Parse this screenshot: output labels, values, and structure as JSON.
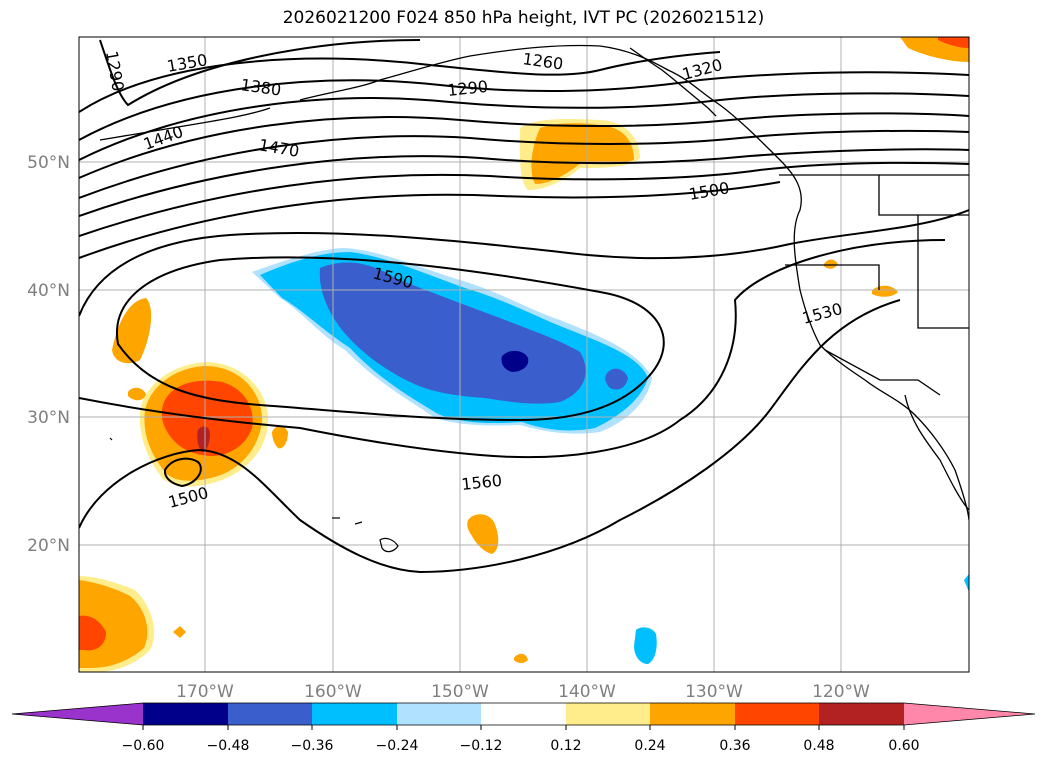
{
  "title": "2026021200 F024 850 hPa height, IVT PC (2026021512)",
  "lat_ticks": [
    "50°N",
    "40°N",
    "30°N",
    "20°N"
  ],
  "lon_ticks": [
    "170°W",
    "160°W",
    "150°W",
    "140°W",
    "130°W",
    "120°W"
  ],
  "contour_labels": [
    "1350",
    "1290",
    "1380",
    "1440",
    "1470",
    "1260",
    "1290",
    "1320",
    "1500",
    "1590",
    "1530",
    "1560",
    "1500"
  ],
  "colorbar": {
    "ticks": [
      "−0.60",
      "−0.48",
      "−0.36",
      "−0.24",
      "−0.12",
      "0.12",
      "0.24",
      "0.36",
      "0.48",
      "0.60"
    ],
    "colors": [
      "#9933cc",
      "#00008b",
      "#3a5fcd",
      "#00bfff",
      "#b0e2ff",
      "#ffffff",
      "#ffec8b",
      "#ffa500",
      "#ff4500",
      "#b22222",
      "#ff88aa"
    ]
  }
}
